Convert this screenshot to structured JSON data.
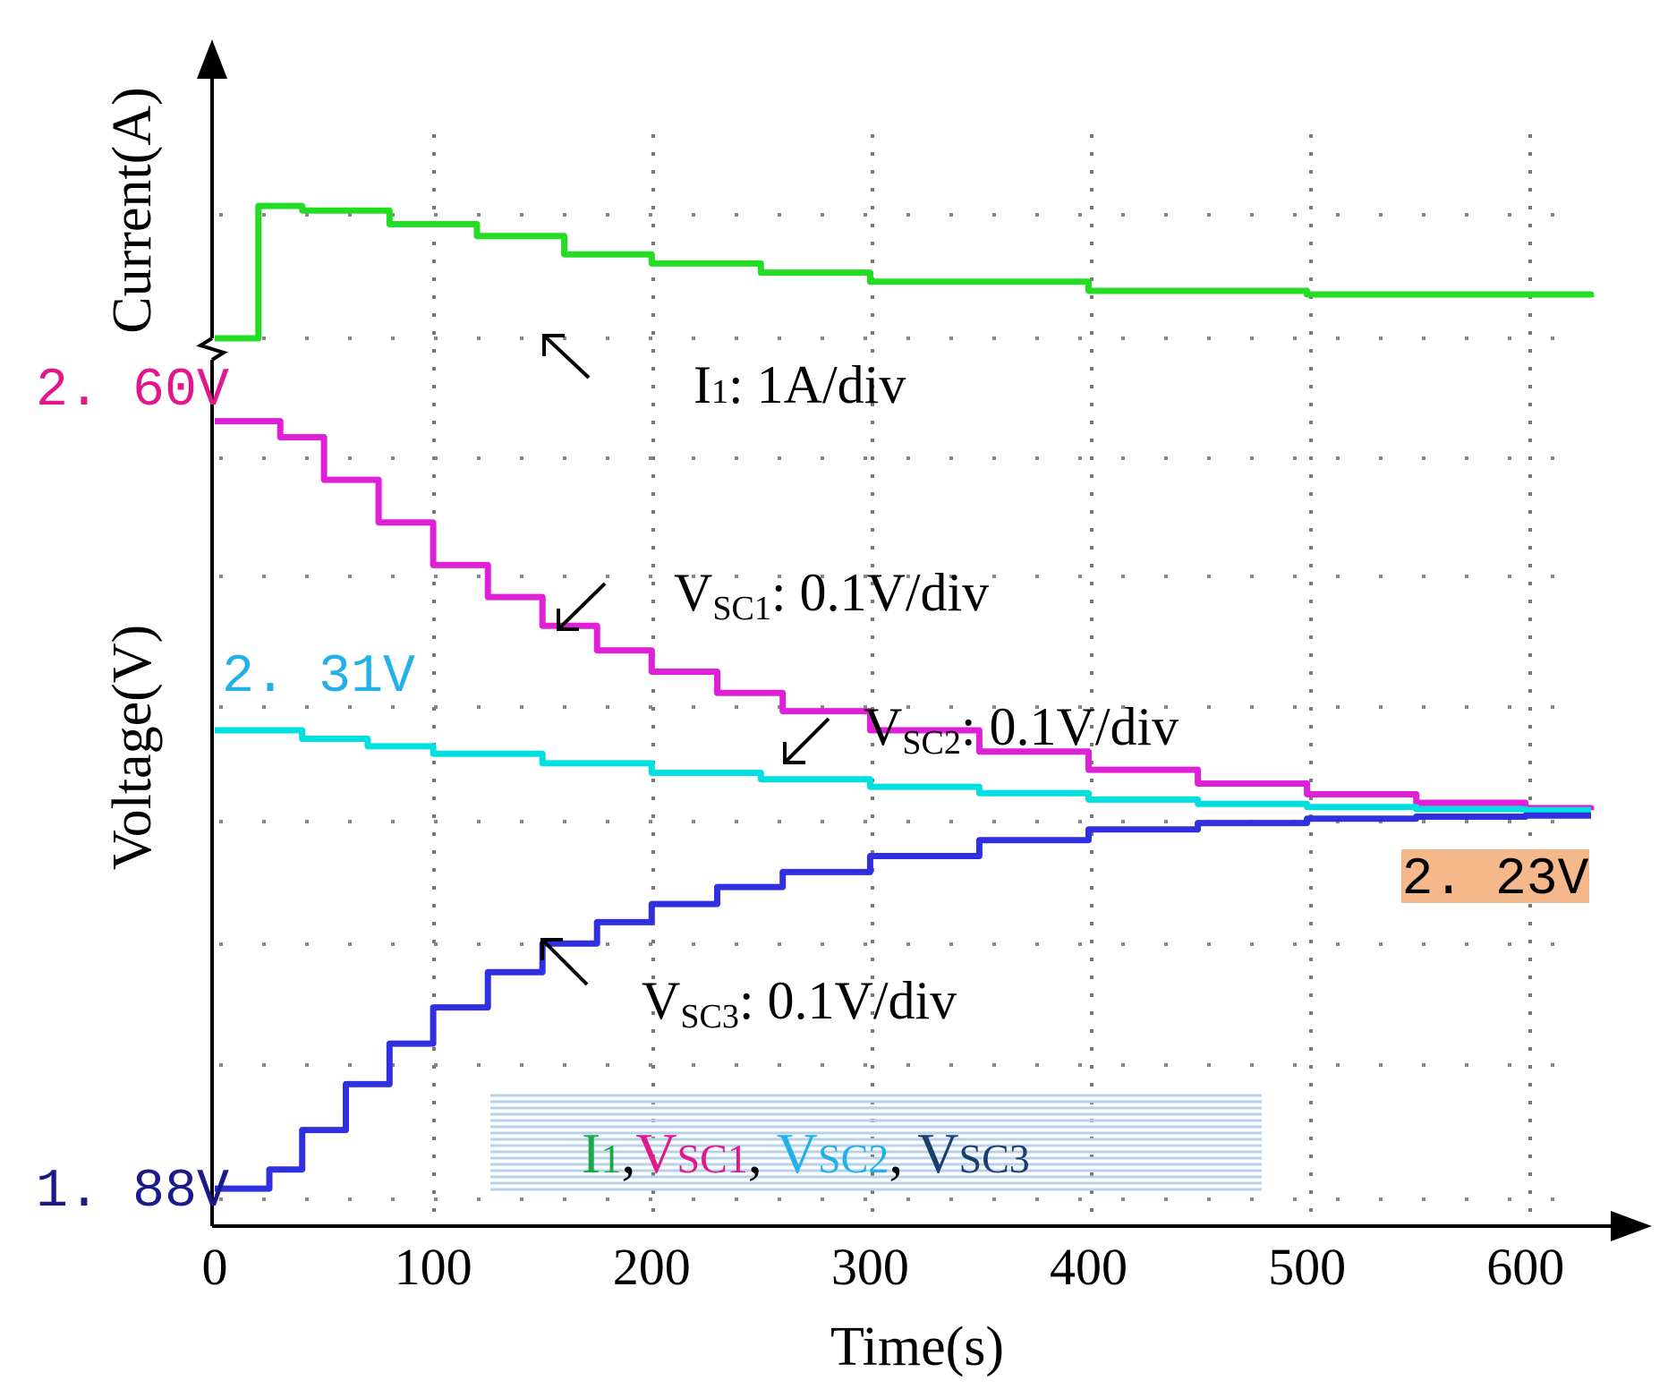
{
  "chart_data": {
    "type": "line",
    "xlabel": "Time(s)",
    "ylabel_current": "Current(A)",
    "ylabel_voltage": "Voltage(V)",
    "xlim": [
      0,
      630
    ],
    "x_ticks": [
      {
        "value": 0,
        "label": "0"
      },
      {
        "value": 100,
        "label": "100"
      },
      {
        "value": 200,
        "label": "200"
      },
      {
        "value": 300,
        "label": "300"
      },
      {
        "value": 400,
        "label": "400"
      },
      {
        "value": 500,
        "label": "500"
      },
      {
        "value": 600,
        "label": "600"
      }
    ],
    "voltage_ylim": [
      1.87,
      2.64
    ],
    "current_ylim": [
      0,
      2
    ],
    "value_labels": {
      "vsc1_start": "2. 60V",
      "vsc2_start": "2. 31V",
      "vsc3_start": "1. 88V",
      "final": "2. 23V"
    },
    "annotations": {
      "i1": {
        "main": "I",
        "sub": "1",
        "tail": ": 1A/div"
      },
      "vsc1": {
        "main": "V",
        "sub": "SC1",
        "tail": ": 0.1V/div"
      },
      "vsc2": {
        "main": "V",
        "sub": "SC2",
        "tail": ": 0.1V/div"
      },
      "vsc3": {
        "main": "V",
        "sub": "SC3",
        "tail": ": 0.1V/div"
      }
    },
    "legend": {
      "i1": {
        "main": "I",
        "sub": "1"
      },
      "sep": ",",
      "vsc1": {
        "main": "V",
        "sub": "SC1"
      },
      "vsc2": {
        "main": "V",
        "sub": "SC2"
      },
      "vsc3": {
        "main": "V",
        "sub": "SC3"
      }
    },
    "series": [
      {
        "name": "I1",
        "axis": "current",
        "color": "#22dd22",
        "x": [
          0,
          20,
          20,
          40,
          80,
          120,
          160,
          200,
          250,
          300,
          400,
          500,
          630
        ],
        "y": [
          0,
          0,
          1.45,
          1.4,
          1.25,
          1.12,
          0.92,
          0.82,
          0.72,
          0.62,
          0.52,
          0.48,
          0.45
        ]
      },
      {
        "name": "VSC1",
        "axis": "voltage",
        "color": "#e020d8",
        "x": [
          0,
          20,
          30,
          50,
          75,
          100,
          125,
          150,
          175,
          200,
          230,
          260,
          300,
          350,
          400,
          450,
          500,
          550,
          600,
          630
        ],
        "y": [
          2.6,
          2.6,
          2.585,
          2.545,
          2.505,
          2.465,
          2.435,
          2.408,
          2.385,
          2.365,
          2.345,
          2.328,
          2.31,
          2.29,
          2.273,
          2.26,
          2.25,
          2.242,
          2.237,
          2.235
        ]
      },
      {
        "name": "VSC2",
        "axis": "voltage",
        "color": "#00e0e0",
        "x": [
          0,
          20,
          40,
          70,
          100,
          150,
          200,
          250,
          300,
          350,
          400,
          450,
          500,
          550,
          600,
          630
        ],
        "y": [
          2.31,
          2.31,
          2.302,
          2.295,
          2.288,
          2.279,
          2.27,
          2.264,
          2.257,
          2.251,
          2.245,
          2.241,
          2.238,
          2.236,
          2.235,
          2.235
        ]
      },
      {
        "name": "VSC3",
        "axis": "voltage",
        "color": "#3030e0",
        "x": [
          0,
          20,
          25,
          40,
          60,
          80,
          100,
          125,
          150,
          175,
          200,
          230,
          260,
          300,
          350,
          400,
          450,
          500,
          550,
          600,
          630
        ],
        "y": [
          1.88,
          1.88,
          1.898,
          1.935,
          1.978,
          2.016,
          2.05,
          2.083,
          2.11,
          2.13,
          2.147,
          2.163,
          2.177,
          2.192,
          2.207,
          2.217,
          2.223,
          2.227,
          2.229,
          2.23,
          2.23
        ]
      }
    ]
  }
}
